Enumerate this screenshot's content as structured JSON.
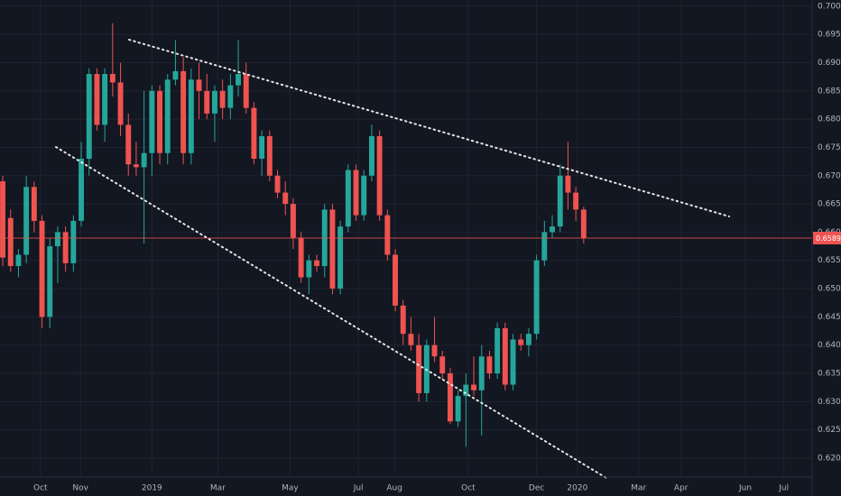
{
  "chart_data": {
    "type": "candlestick",
    "up_color": "#26a69a",
    "down_color": "#ef5350",
    "grid": true,
    "ylim": [
      0.6168,
      0.7011
    ],
    "yticks": [
      {
        "value": 0.62,
        "label": "0.62000"
      },
      {
        "value": 0.625,
        "label": "0.62500"
      },
      {
        "value": 0.63,
        "label": "0.63000"
      },
      {
        "value": 0.635,
        "label": "0.63500"
      },
      {
        "value": 0.64,
        "label": "0.64000"
      },
      {
        "value": 0.645,
        "label": "0.64500"
      },
      {
        "value": 0.65,
        "label": "0.65000"
      },
      {
        "value": 0.655,
        "label": "0.65500"
      },
      {
        "value": 0.66,
        "label": "0.66000"
      },
      {
        "value": 0.665,
        "label": "0.66500"
      },
      {
        "value": 0.67,
        "label": "0.67000"
      },
      {
        "value": 0.675,
        "label": "0.67500"
      },
      {
        "value": 0.68,
        "label": "0.68000"
      },
      {
        "value": 0.685,
        "label": "0.68500"
      },
      {
        "value": 0.69,
        "label": "0.69000"
      },
      {
        "value": 0.695,
        "label": "0.69500"
      },
      {
        "value": 0.7,
        "label": "0.70000"
      }
    ],
    "xlim": [
      -0.35,
      103.1
    ],
    "xticks": [
      {
        "value": 4.8,
        "label": "Oct"
      },
      {
        "value": 9.9,
        "label": "Nov"
      },
      {
        "value": 19,
        "label": "2019"
      },
      {
        "value": 27.4,
        "label": "Mar"
      },
      {
        "value": 36.6,
        "label": "May"
      },
      {
        "value": 45.3,
        "label": "Jul"
      },
      {
        "value": 49.9,
        "label": "Aug"
      },
      {
        "value": 59.3,
        "label": "Oct"
      },
      {
        "value": 68,
        "label": "Dec"
      },
      {
        "value": 73.2,
        "label": "2020"
      },
      {
        "value": 81,
        "label": "Mar"
      },
      {
        "value": 86.4,
        "label": "Apr"
      },
      {
        "value": 94.6,
        "label": "Jun"
      },
      {
        "value": 99.5,
        "label": "Jul"
      }
    ],
    "open": [
      0.669,
      0.6625,
      0.654,
      0.656,
      0.668,
      0.662,
      0.645,
      0.6575,
      0.66,
      0.6545,
      0.662,
      0.673,
      0.688,
      0.679,
      0.688,
      0.6865,
      0.679,
      0.672,
      0.6715,
      0.674,
      0.685,
      0.674,
      0.687,
      0.6885,
      0.674,
      0.687,
      0.685,
      0.681,
      0.685,
      0.682,
      0.686,
      0.688,
      0.682,
      0.673,
      0.677,
      0.67,
      0.667,
      0.665,
      0.659,
      0.652,
      0.655,
      0.654,
      0.664,
      0.65,
      0.661,
      0.671,
      0.663,
      0.67,
      0.677,
      0.663,
      0.656,
      0.647,
      0.642,
      0.64,
      0.6315,
      0.64,
      0.638,
      0.635,
      0.6265,
      0.631,
      0.633,
      0.632,
      0.638,
      0.635,
      0.643,
      0.633,
      0.641,
      0.64,
      0.642,
      0.655,
      0.66,
      0.661,
      0.67,
      0.667,
      0.664
    ],
    "high": [
      0.67,
      0.664,
      0.657,
      0.67,
      0.669,
      0.663,
      0.659,
      0.661,
      0.661,
      0.663,
      0.676,
      0.689,
      0.689,
      0.689,
      0.697,
      0.69,
      0.681,
      0.676,
      0.685,
      0.686,
      0.686,
      0.688,
      0.694,
      0.691,
      0.689,
      0.69,
      0.688,
      0.686,
      0.687,
      0.688,
      0.694,
      0.69,
      0.683,
      0.678,
      0.678,
      0.671,
      0.669,
      0.666,
      0.66,
      0.656,
      0.656,
      0.665,
      0.665,
      0.662,
      0.672,
      0.672,
      0.671,
      0.679,
      0.678,
      0.664,
      0.657,
      0.648,
      0.645,
      0.642,
      0.641,
      0.645,
      0.639,
      0.636,
      0.632,
      0.635,
      0.638,
      0.64,
      0.639,
      0.644,
      0.644,
      0.642,
      0.642,
      0.643,
      0.656,
      0.662,
      0.663,
      0.672,
      0.676,
      0.668,
      0.6645
    ],
    "low": [
      0.654,
      0.653,
      0.652,
      0.6545,
      0.66,
      0.643,
      0.643,
      0.651,
      0.653,
      0.653,
      0.661,
      0.67,
      0.678,
      0.676,
      0.684,
      0.677,
      0.67,
      0.67,
      0.658,
      0.67,
      0.672,
      0.672,
      0.686,
      0.672,
      0.672,
      0.68,
      0.68,
      0.676,
      0.68,
      0.68,
      0.684,
      0.681,
      0.672,
      0.67,
      0.669,
      0.666,
      0.663,
      0.657,
      0.651,
      0.649,
      0.653,
      0.652,
      0.649,
      0.649,
      0.66,
      0.662,
      0.662,
      0.669,
      0.662,
      0.655,
      0.646,
      0.64,
      0.639,
      0.63,
      0.63,
      0.637,
      0.634,
      0.626,
      0.6255,
      0.622,
      0.631,
      0.624,
      0.634,
      0.634,
      0.632,
      0.632,
      0.639,
      0.638,
      0.641,
      0.654,
      0.659,
      0.66,
      0.664,
      0.662,
      0.658
    ],
    "close": [
      0.6555,
      0.654,
      0.656,
      0.668,
      0.662,
      0.645,
      0.6575,
      0.66,
      0.6545,
      0.662,
      0.673,
      0.688,
      0.679,
      0.688,
      0.6865,
      0.679,
      0.672,
      0.6715,
      0.674,
      0.685,
      0.674,
      0.687,
      0.6885,
      0.674,
      0.687,
      0.685,
      0.681,
      0.685,
      0.682,
      0.686,
      0.688,
      0.682,
      0.673,
      0.677,
      0.67,
      0.667,
      0.665,
      0.659,
      0.652,
      0.655,
      0.654,
      0.664,
      0.65,
      0.661,
      0.671,
      0.663,
      0.67,
      0.677,
      0.663,
      0.656,
      0.647,
      0.642,
      0.64,
      0.6315,
      0.64,
      0.638,
      0.635,
      0.6265,
      0.631,
      0.633,
      0.632,
      0.638,
      0.635,
      0.643,
      0.633,
      0.641,
      0.64,
      0.642,
      0.655,
      0.66,
      0.661,
      0.67,
      0.667,
      0.664,
      0.65895
    ]
  }
}
